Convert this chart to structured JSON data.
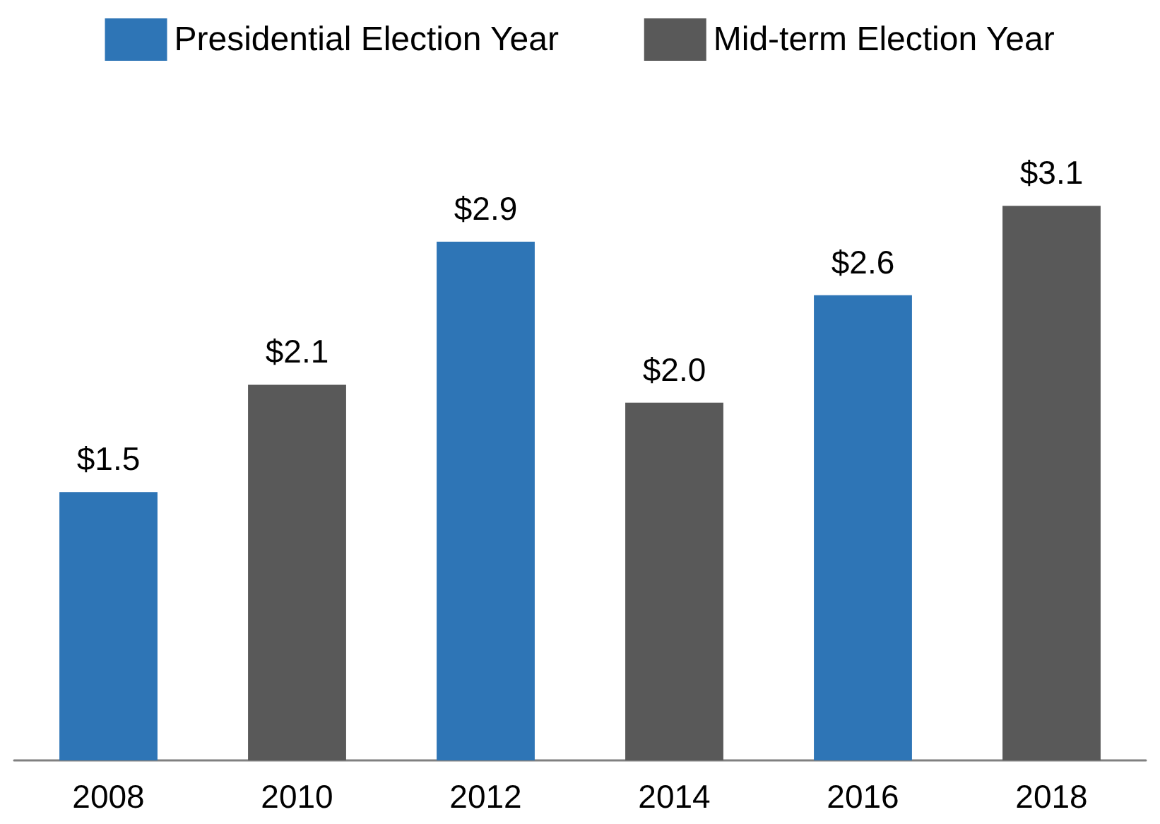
{
  "chart_data": {
    "type": "bar",
    "categories": [
      "2008",
      "2010",
      "2012",
      "2014",
      "2016",
      "2018"
    ],
    "series": [
      {
        "name": "Presidential Election Year",
        "color": "#2e75b6",
        "values": [
          1.5,
          null,
          2.9,
          null,
          2.6,
          null
        ],
        "value_labels": [
          "$1.5",
          null,
          "$2.9",
          null,
          "$2.6",
          null
        ]
      },
      {
        "name": "Mid-term Election Year",
        "color": "#595959",
        "values": [
          null,
          2.1,
          null,
          2.0,
          null,
          3.1
        ],
        "value_labels": [
          null,
          "$2.1",
          null,
          "$2.0",
          null,
          "$3.1"
        ]
      }
    ],
    "legend": "top"
  }
}
